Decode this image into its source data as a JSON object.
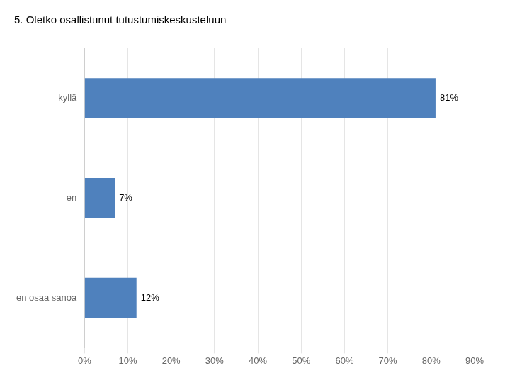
{
  "chart_data": {
    "type": "bar",
    "orientation": "horizontal",
    "title": "5. Oletko osallistunut tutustumiskeskusteluun",
    "categories": [
      "en osaa sanoa",
      "en",
      "kyllä"
    ],
    "values": [
      0.12,
      0.07,
      0.81
    ],
    "value_labels": [
      "12%",
      "7%",
      "81%"
    ],
    "data_labels": true,
    "color": "#4F81BD",
    "xlim": [
      0,
      0.9
    ],
    "xticks": [
      {
        "value": 0,
        "label": "0%"
      },
      {
        "value": 0.1,
        "label": "10%"
      },
      {
        "value": 0.2,
        "label": "20%"
      },
      {
        "value": 0.3,
        "label": "30%"
      },
      {
        "value": 0.4,
        "label": "40%"
      },
      {
        "value": 0.5,
        "label": "50%"
      },
      {
        "value": 0.6,
        "label": "60%"
      },
      {
        "value": 0.7,
        "label": "70%"
      },
      {
        "value": 0.8,
        "label": "80%"
      },
      {
        "value": 0.9,
        "label": "90%"
      }
    ],
    "grid": true
  }
}
